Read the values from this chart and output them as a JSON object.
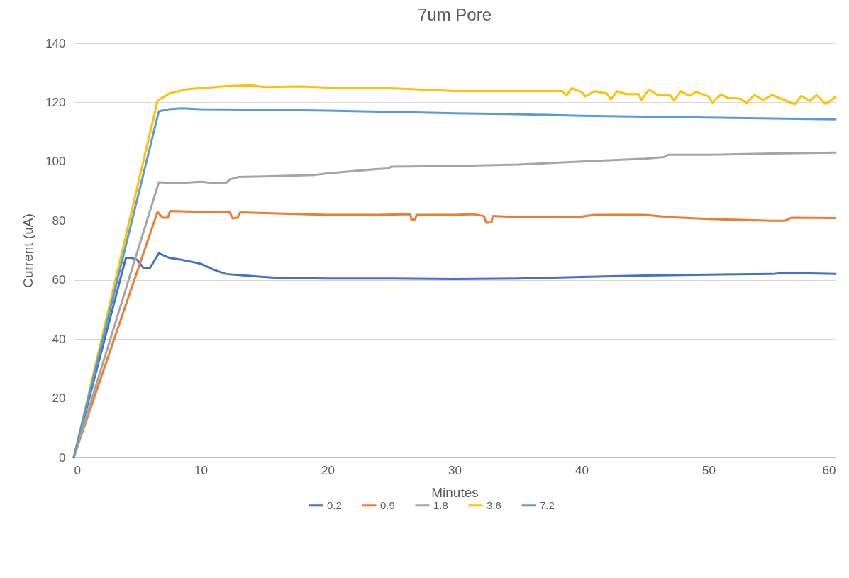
{
  "chart_data": {
    "type": "line",
    "title": "7um Pore",
    "xlabel": "Minutes",
    "ylabel": "Current (uA)",
    "xlim": [
      0,
      60
    ],
    "xticks": [
      0,
      10,
      20,
      30,
      40,
      50,
      60
    ],
    "ylim": [
      0,
      140
    ],
    "yticks": [
      0,
      20,
      40,
      60,
      80,
      100,
      120,
      140
    ],
    "grid": true,
    "legend": "bottom",
    "marker": "none",
    "line_style": "solid",
    "series": [
      {
        "name": "0.2",
        "color": "#4472c4",
        "x": [
          0,
          4.1,
          4.5,
          5,
          5.5,
          6,
          6.7,
          7.5,
          8.5,
          10,
          11,
          12,
          14,
          16,
          20,
          25,
          30,
          35,
          40,
          45,
          50,
          55,
          56,
          58,
          60
        ],
        "values": [
          0,
          67.4,
          67.5,
          66.8,
          64,
          64,
          69,
          67.5,
          66.8,
          65.5,
          63.5,
          62,
          61.3,
          60.7,
          60.5,
          60.5,
          60.3,
          60.5,
          61,
          61.5,
          61.8,
          62,
          62.4,
          62.2,
          62
        ]
      },
      {
        "name": "0.9",
        "color": "#ed7d31",
        "x": [
          0,
          6.6,
          7,
          7.4,
          7.6,
          10,
          12.3,
          12.5,
          12.9,
          13.1,
          20,
          24,
          26.5,
          26.6,
          26.9,
          27,
          30,
          31.5,
          32.3,
          32.5,
          32.9,
          33,
          35,
          40,
          41,
          45,
          47,
          50,
          55,
          56,
          56.5,
          60
        ],
        "values": [
          0,
          83,
          81,
          81,
          83.3,
          83,
          82.8,
          80.8,
          81,
          82.8,
          82,
          82,
          82.2,
          80.4,
          80.5,
          82,
          82,
          82.2,
          81.6,
          79.3,
          79.5,
          81.6,
          81.2,
          81.4,
          82,
          82,
          81.2,
          80.6,
          80,
          80,
          81,
          80.9
        ]
      },
      {
        "name": "1.8",
        "color": "#a5a5a5",
        "x": [
          0,
          6.7,
          8,
          10,
          11,
          12,
          12.3,
          13,
          15,
          19,
          20,
          22,
          24,
          24.8,
          25,
          30,
          35,
          40,
          45,
          46.5,
          46.8,
          50,
          55,
          60
        ],
        "values": [
          0,
          93,
          92.7,
          93.2,
          92.8,
          92.8,
          94,
          94.8,
          95,
          95.5,
          96,
          96.8,
          97.5,
          97.7,
          98.3,
          98.5,
          99,
          100,
          101,
          101.5,
          102.3,
          102.3,
          102.7,
          103
        ]
      },
      {
        "name": "3.6",
        "color": "#ffc000",
        "x": [
          0,
          6.6,
          7.5,
          9,
          12,
          14,
          15,
          18,
          20,
          25,
          30,
          35,
          38.5,
          38.8,
          39.2,
          40,
          40.3,
          41,
          42,
          42.3,
          42.8,
          43.5,
          44.5,
          44.7,
          45.3,
          46,
          47,
          47.3,
          47.8,
          48.5,
          49,
          50,
          50.3,
          51,
          51.5,
          52.5,
          53,
          53.6,
          54.3,
          55,
          56.3,
          56.8,
          57.3,
          58,
          58.5,
          59.2,
          59.8,
          60
        ],
        "values": [
          0,
          120.5,
          123,
          124.5,
          125.5,
          125.8,
          125.2,
          125.4,
          125,
          124.8,
          123.8,
          123.8,
          123.8,
          122.3,
          124.8,
          123.5,
          122,
          123.8,
          123,
          121,
          123.8,
          122.8,
          122.8,
          120.8,
          124.3,
          122.5,
          122.3,
          120.6,
          123.8,
          122.2,
          123.6,
          122,
          120,
          122.7,
          121.5,
          121.3,
          119.8,
          122.5,
          120.8,
          122.5,
          120.2,
          119.4,
          122.2,
          120.5,
          122.5,
          119.5,
          121.2,
          122
        ]
      },
      {
        "name": "7.2",
        "color": "#5b9bd5",
        "x": [
          0,
          6.7,
          7.5,
          8.5,
          10,
          15,
          20,
          25,
          30,
          35,
          40,
          45,
          50,
          55,
          60
        ],
        "values": [
          0,
          117,
          117.7,
          118,
          117.7,
          117.5,
          117.2,
          116.8,
          116.3,
          116,
          115.5,
          115.2,
          114.9,
          114.6,
          114.3
        ]
      }
    ]
  }
}
